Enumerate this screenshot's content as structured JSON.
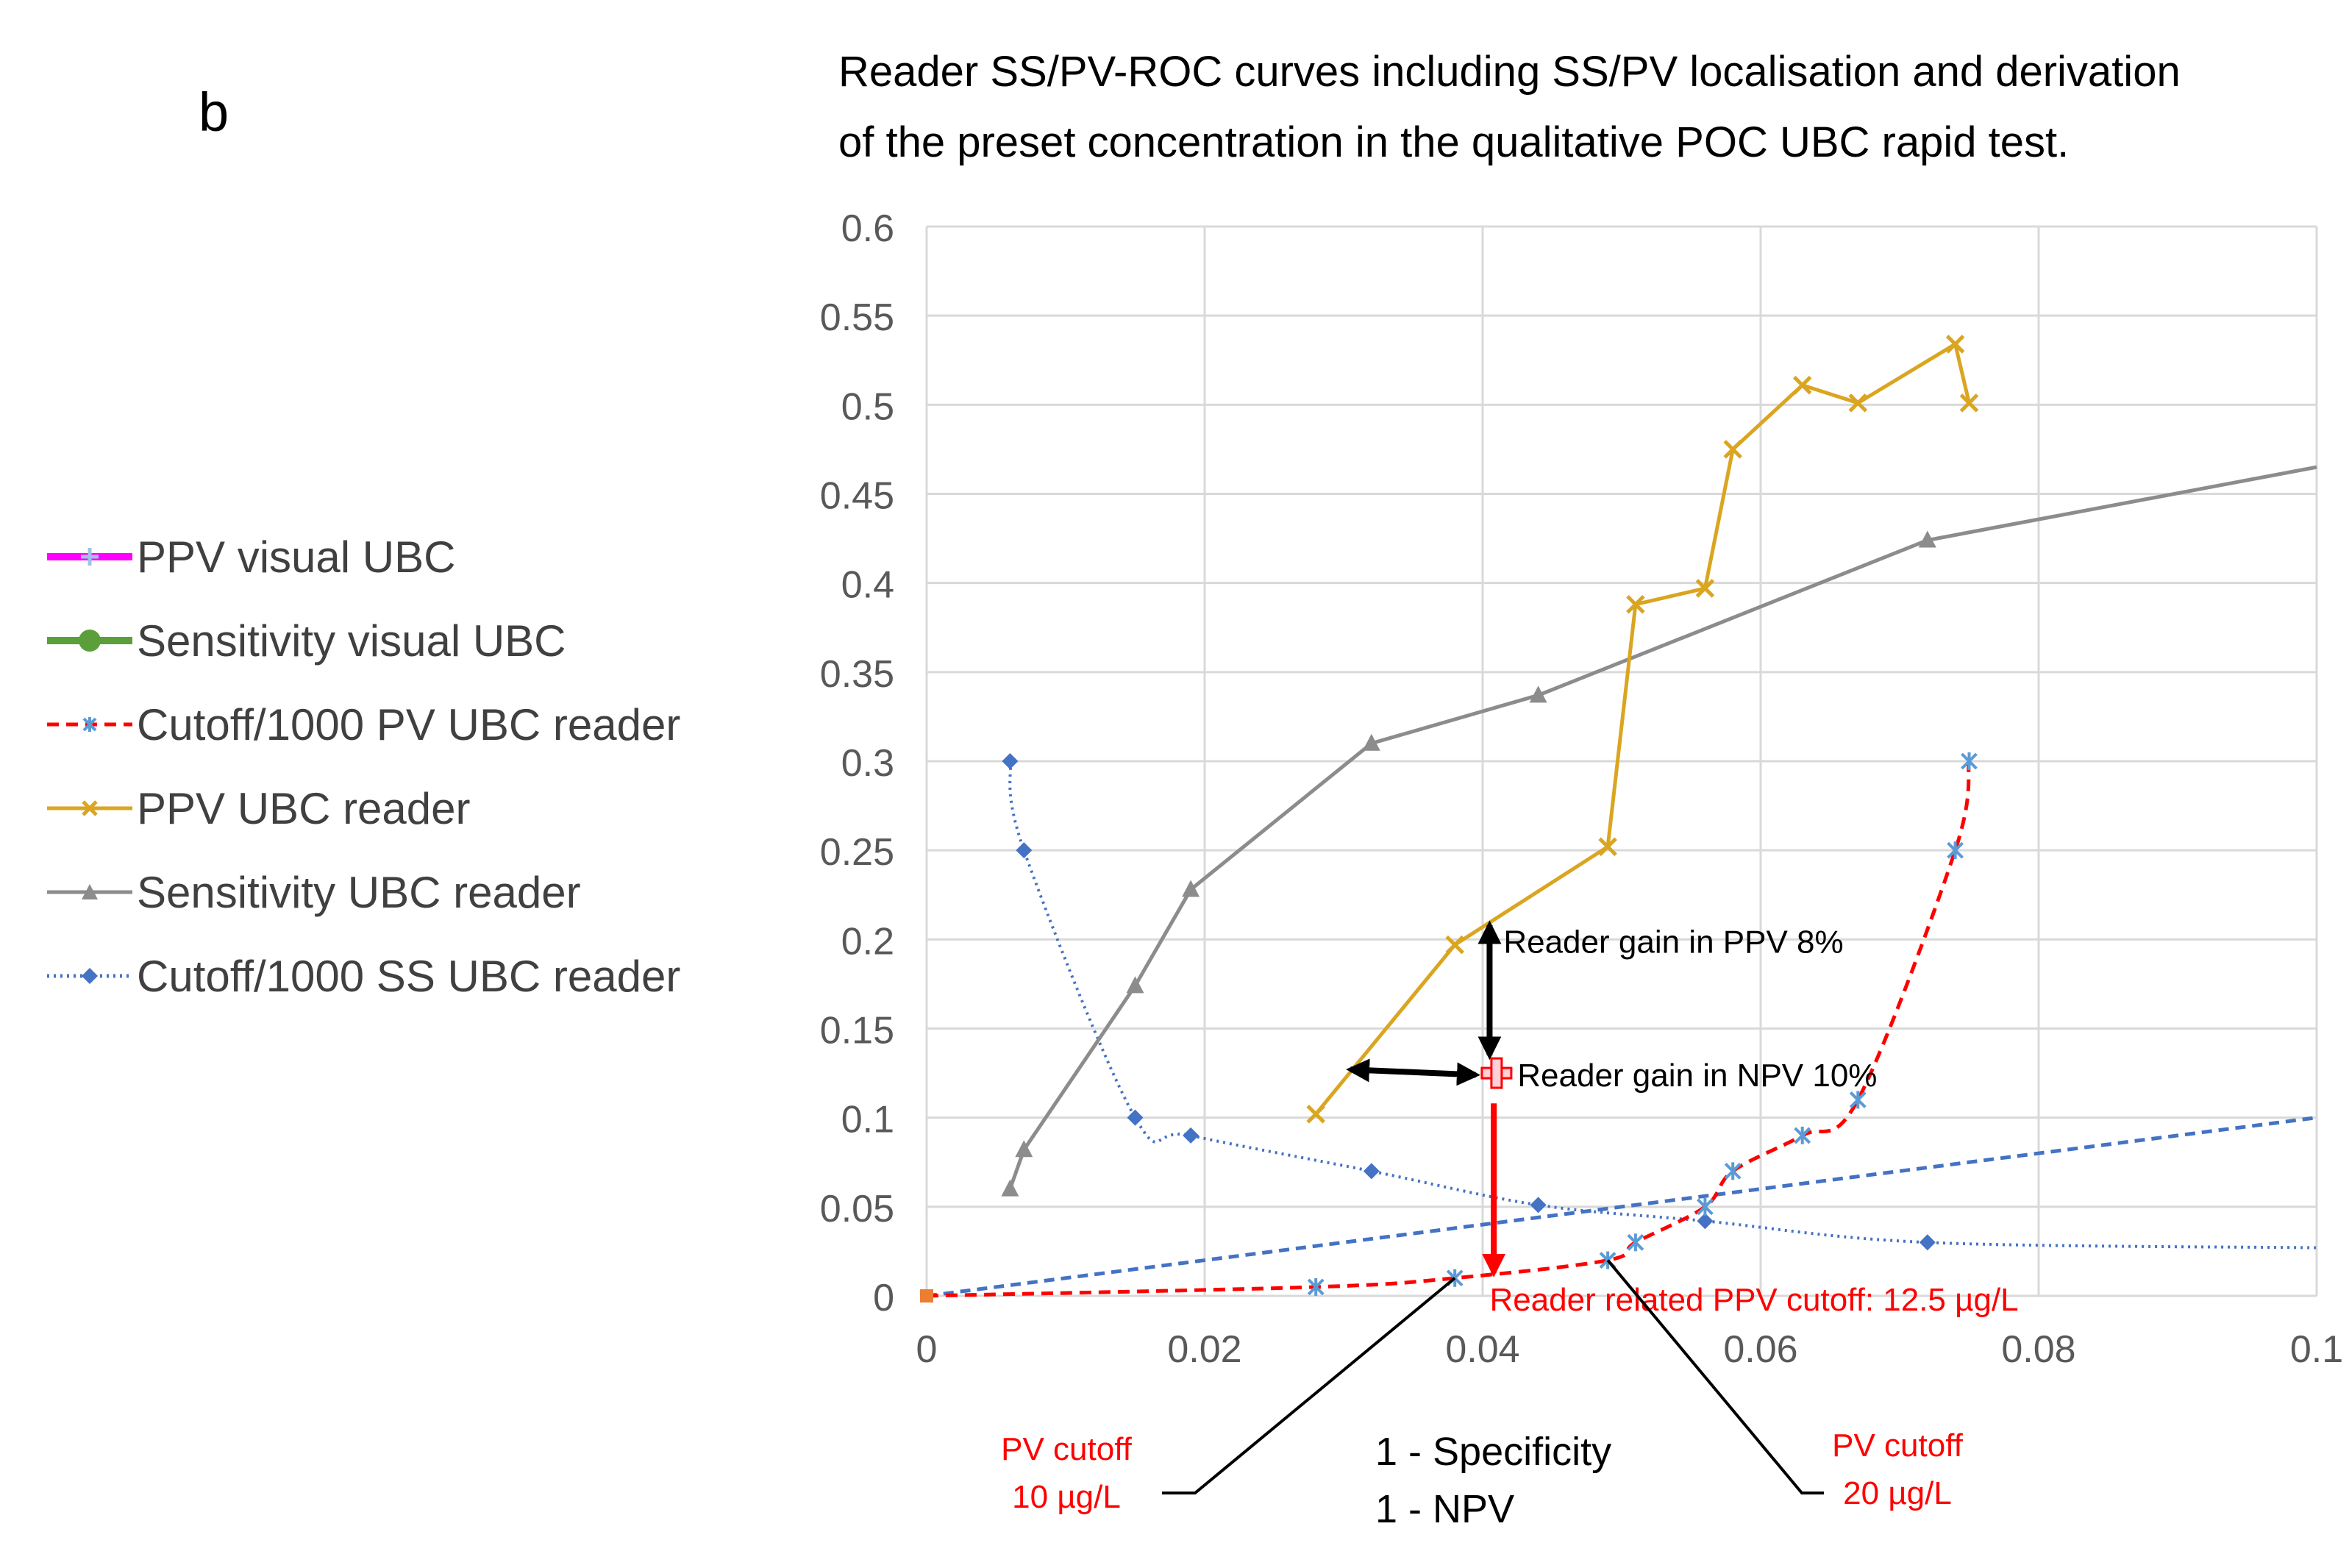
{
  "panel_label": "b",
  "title_lines": [
    "Reader SS/PV-ROC curves including SS/PV localisation and derivation",
    "of the preset concentration in the qualitative  POC UBC rapid test."
  ],
  "colors": {
    "ppv_visual": "#ff00ff",
    "ppv_visual_marker": "#9dc3e6",
    "sensitivity_visual": "#5b9f3a",
    "cutoff_pv": "#ff0000",
    "cutoff_pv_marker": "#5b9bd5",
    "ppv_reader": "#daa520",
    "sensitivity_reader": "#8c8c8c",
    "cutoff_ss": "#4472c4",
    "axis_text": "#595959",
    "grid": "#d9d9d9",
    "annotation_red": "#ff0000",
    "annotation_black": "#000000"
  },
  "chart_data": {
    "type": "line",
    "xlim": [
      0,
      0.1
    ],
    "ylim": [
      0,
      0.6
    ],
    "x_ticks": [
      "0",
      "0.02",
      "0.04",
      "0.06",
      "0.08",
      "0.1"
    ],
    "y_ticks": [
      "0",
      "0.05",
      "0.1",
      "0.15",
      "0.2",
      "0.25",
      "0.3",
      "0.35",
      "0.4",
      "0.45",
      "0.5",
      "0.55",
      "0.6"
    ],
    "xlabel_lines": [
      "1 - Specificity",
      "1 - NPV"
    ],
    "grid": true,
    "legend_position": "left",
    "series": [
      {
        "name": "PPV visual UBC",
        "style": "magenta-plus",
        "points": [
          [
            0.041,
            0.125
          ]
        ]
      },
      {
        "name": "Sensitivity visual UBC",
        "style": "green-circle",
        "points": []
      },
      {
        "name": "Cutoff/1000 PV UBC reader",
        "style": "red-dash-star",
        "points": [
          [
            0,
            0
          ],
          [
            0.028,
            0.005
          ],
          [
            0.038,
            0.01
          ],
          [
            0.049,
            0.02
          ],
          [
            0.051,
            0.03
          ],
          [
            0.056,
            0.05
          ],
          [
            0.058,
            0.07
          ],
          [
            0.063,
            0.09
          ],
          [
            0.067,
            0.11
          ],
          [
            0.074,
            0.25
          ],
          [
            0.075,
            0.3
          ]
        ]
      },
      {
        "name": "PPV UBC reader",
        "style": "gold-x",
        "points": [
          [
            0.028,
            0.102
          ],
          [
            0.038,
            0.197
          ],
          [
            0.049,
            0.252
          ],
          [
            0.051,
            0.388
          ],
          [
            0.056,
            0.397
          ],
          [
            0.058,
            0.475
          ],
          [
            0.063,
            0.511
          ],
          [
            0.067,
            0.501
          ],
          [
            0.074,
            0.534
          ],
          [
            0.075,
            0.501
          ]
        ]
      },
      {
        "name": "Sensitivity UBC reader",
        "style": "gray-triangle",
        "points": [
          [
            0.006,
            0.06
          ],
          [
            0.007,
            0.082
          ],
          [
            0.015,
            0.174
          ],
          [
            0.019,
            0.228
          ],
          [
            0.032,
            0.31
          ],
          [
            0.044,
            0.337
          ],
          [
            0.072,
            0.424
          ],
          [
            0.1,
            0.465
          ]
        ]
      },
      {
        "name": "Cutoff/1000 SS UBC reader",
        "style": "blue-dot-diamond",
        "points": [
          [
            0.006,
            0.3
          ],
          [
            0.007,
            0.25
          ],
          [
            0.015,
            0.1
          ],
          [
            0.019,
            0.09
          ],
          [
            0.032,
            0.07
          ],
          [
            0.044,
            0.051
          ],
          [
            0.056,
            0.042
          ],
          [
            0.072,
            0.03
          ],
          [
            0.1,
            0.027
          ]
        ]
      }
    ],
    "reference_line": {
      "points": [
        [
          0,
          0
        ],
        [
          0.1,
          0.1
        ]
      ]
    },
    "annotations": {
      "gain_ppv": "Reader gain in PPV 8%",
      "gain_npv": "Reader gain in NPV 10%",
      "ppv_cutoff": "Reader related PPV cutoff: 12.5 µg/L",
      "pv_cutoff_10": [
        "PV cutoff",
        "10 µg/L"
      ],
      "pv_cutoff_20": [
        "PV cutoff",
        "20 µg/L"
      ]
    }
  }
}
